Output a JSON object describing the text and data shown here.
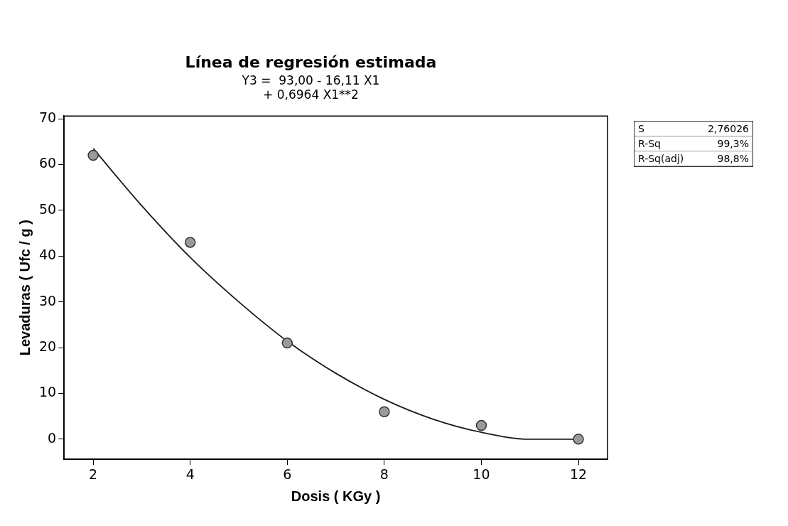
{
  "chart_data": {
    "type": "scatter",
    "title": "Línea de regresión estimada",
    "subtitle": "Y3 =  93,00 - 16,11 X1\n+ 0,6964 X1**2",
    "xlabel": "Dosis ( KGy )",
    "ylabel": "Levaduras ( Ufc / g )",
    "xlim": [
      1.4,
      12.6
    ],
    "xticks": [
      2,
      4,
      6,
      8,
      10,
      12
    ],
    "ylim": [
      -4.4,
      70.6
    ],
    "yticks": [
      0,
      10,
      20,
      30,
      40,
      50,
      60,
      70
    ],
    "grid": false,
    "legend": false,
    "marker": "circle",
    "series": [
      {
        "type": "scatter",
        "color": "#9a9a9a",
        "x": [
          2,
          4,
          6,
          8,
          10,
          12
        ],
        "values": [
          62,
          43,
          21,
          6,
          3,
          0
        ]
      },
      {
        "type": "line",
        "color": "#1a1a1a",
        "marker": "none",
        "line_style": "solid",
        "x": [
          2,
          3,
          4,
          5,
          6,
          7,
          8,
          9,
          10,
          11,
          12
        ],
        "values": [
          63.5,
          51,
          39.7,
          30,
          21.4,
          14.4,
          8.7,
          4.4,
          1.5,
          0,
          0
        ]
      }
    ],
    "annotations": [
      "S",
      "2,76026",
      "R-Sq",
      "99,3%",
      "R-Sq(adj)",
      "98,8%"
    ]
  }
}
